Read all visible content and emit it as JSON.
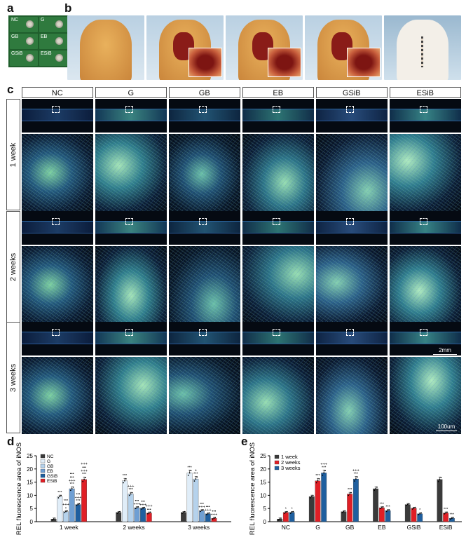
{
  "panels": {
    "a": {
      "label": "a",
      "tiles": [
        "NC",
        "G",
        "GB",
        "EB",
        "GSiB",
        "ESiB"
      ]
    },
    "b": {
      "label": "b"
    },
    "c": {
      "label": "c",
      "columns": [
        "NC",
        "G",
        "GB",
        "EB",
        "GSiB",
        "ESiB"
      ],
      "rows": [
        "1 week",
        "2 weeks",
        "3 weeks"
      ],
      "scale_bar_low": "2mm",
      "scale_bar_high": "100um"
    },
    "d": {
      "label": "d"
    },
    "e": {
      "label": "e"
    }
  },
  "chart_data": [
    {
      "type": "bar",
      "panel": "d",
      "ylabel": "REL fluorescence area of iNOS",
      "ylim": [
        0,
        25
      ],
      "yticks": [
        0,
        5,
        10,
        15,
        20,
        25
      ],
      "categories": [
        "1 week",
        "2 weeks",
        "3 weeks"
      ],
      "legend_placement": "top-left",
      "series": [
        {
          "name": "NC",
          "color": "#3a3a3a",
          "values": [
            1.0,
            3.5,
            3.5
          ]
        },
        {
          "name": "G",
          "color": "#e0edf8",
          "values": [
            9.5,
            15.5,
            18.5
          ]
        },
        {
          "name": "GB",
          "color": "#b5d2ec",
          "values": [
            3.8,
            10.5,
            16.2
          ]
        },
        {
          "name": "EB",
          "color": "#6f9fd3",
          "values": [
            12.5,
            5.3,
            4.2
          ]
        },
        {
          "name": "GSiB",
          "color": "#1f5f9f",
          "values": [
            6.5,
            5.1,
            3.0
          ]
        },
        {
          "name": "ESiB",
          "color": "#e01f26",
          "values": [
            16.0,
            3.3,
            1.3
          ]
        }
      ],
      "annotations": [
        {
          "cat": 0,
          "ser": 1,
          "text": "***"
        },
        {
          "cat": 0,
          "ser": 2,
          "text": "***\n+++\n•"
        },
        {
          "cat": 0,
          "ser": 3,
          "text": "•••\n•••\n+++\n***"
        },
        {
          "cat": 0,
          "ser": 4,
          "text": "•••\n+++\n***"
        },
        {
          "cat": 0,
          "ser": 5,
          "text": "+++\n•••\n+++\n***"
        },
        {
          "cat": 1,
          "ser": 1,
          "text": "***"
        },
        {
          "cat": 1,
          "ser": 2,
          "text": "+++\n***"
        },
        {
          "cat": 1,
          "ser": 3,
          "text": "•••\n+++"
        },
        {
          "cat": 1,
          "ser": 4,
          "text": "•••\n+++"
        },
        {
          "cat": 1,
          "ser": 5,
          "text": "+++\n•••"
        },
        {
          "cat": 2,
          "ser": 1,
          "text": "***"
        },
        {
          "cat": 2,
          "ser": 2,
          "text": "+\n***"
        },
        {
          "cat": 2,
          "ser": 3,
          "text": "•••\n+++"
        },
        {
          "cat": 2,
          "ser": 4,
          "text": "•••\n+++"
        },
        {
          "cat": 2,
          "ser": 5,
          "text": "•••\n+++"
        }
      ]
    },
    {
      "type": "bar",
      "panel": "e",
      "ylabel": "REL fluorescence area of iNOS",
      "ylim": [
        0,
        25
      ],
      "yticks": [
        0,
        5,
        10,
        15,
        20,
        25
      ],
      "categories": [
        "NC",
        "G",
        "GB",
        "EB",
        "GSiB",
        "ESiB"
      ],
      "legend_placement": "top-left",
      "series": [
        {
          "name": "1 week",
          "color": "#3a3a3a",
          "values": [
            1.0,
            9.5,
            3.8,
            12.5,
            6.5,
            16.0
          ]
        },
        {
          "name": "2 weeks",
          "color": "#e01f26",
          "values": [
            3.5,
            15.5,
            10.5,
            5.3,
            5.1,
            3.3
          ]
        },
        {
          "name": "3 weeks",
          "color": "#1f5f9f",
          "values": [
            3.5,
            18.5,
            16.2,
            4.2,
            3.0,
            1.3
          ]
        }
      ],
      "annotations": [
        {
          "cat": 0,
          "ser": 1,
          "text": "*"
        },
        {
          "cat": 0,
          "ser": 2,
          "text": "*"
        },
        {
          "cat": 1,
          "ser": 1,
          "text": "***"
        },
        {
          "cat": 1,
          "ser": 2,
          "text": "+++\n***"
        },
        {
          "cat": 2,
          "ser": 1,
          "text": "***"
        },
        {
          "cat": 2,
          "ser": 2,
          "text": "+++\n***"
        },
        {
          "cat": 3,
          "ser": 1,
          "text": "***"
        },
        {
          "cat": 3,
          "ser": 2,
          "text": "***"
        },
        {
          "cat": 4,
          "ser": 2,
          "text": "*"
        },
        {
          "cat": 5,
          "ser": 1,
          "text": "***"
        },
        {
          "cat": 5,
          "ser": 2,
          "text": "***"
        }
      ]
    }
  ]
}
